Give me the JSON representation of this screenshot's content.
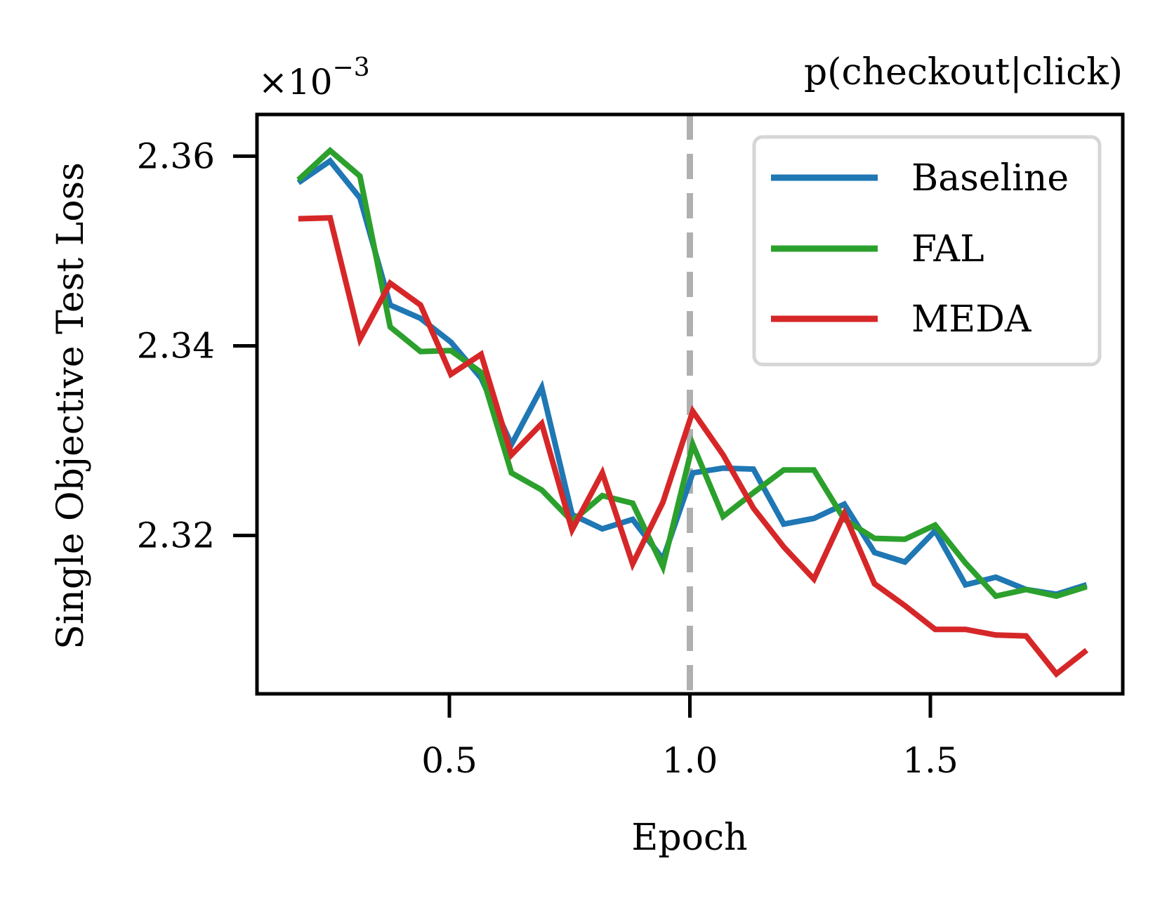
{
  "chart_data": {
    "type": "line",
    "title": "p(checkout|click)",
    "scale_label": "×10",
    "scale_exponent": "−3",
    "xlabel": "Epoch",
    "ylabel": "Single Objective Test Loss",
    "xlim": [
      0.1,
      1.9
    ],
    "ylim": [
      2.3033,
      2.3644
    ],
    "xticks": [
      0.5,
      1.0,
      1.5
    ],
    "xtick_labels": [
      "0.5",
      "1.0",
      "1.5"
    ],
    "yticks": [
      2.32,
      2.34,
      2.36
    ],
    "ytick_labels": [
      "2.32",
      "2.34",
      "2.36"
    ],
    "vline": {
      "x": 1.0,
      "color": "#b0b0b0",
      "style": "dashed"
    },
    "grid": false,
    "legend": {
      "position": "top-right",
      "entries": [
        "Baseline",
        "FAL",
        "MEDA"
      ]
    },
    "x": [
      0.186,
      0.252,
      0.314,
      0.377,
      0.44,
      0.503,
      0.566,
      0.629,
      0.692,
      0.755,
      0.818,
      0.881,
      0.944,
      1.006,
      1.069,
      1.132,
      1.195,
      1.258,
      1.321,
      1.384,
      1.447,
      1.51,
      1.573,
      1.636,
      1.699,
      1.762,
      1.825
    ],
    "series": [
      {
        "name": "Baseline",
        "color": "#1f77b4",
        "values": [
          2.3572,
          2.3595,
          2.3556,
          2.3443,
          2.3429,
          2.3404,
          2.3366,
          2.3296,
          2.3356,
          2.3222,
          2.3207,
          2.3217,
          2.3175,
          2.3266,
          2.3271,
          2.327,
          2.3212,
          2.3218,
          2.3233,
          2.3182,
          2.3172,
          2.3205,
          2.3148,
          2.3156,
          2.3143,
          2.3138,
          2.3148
        ]
      },
      {
        "name": "FAL",
        "color": "#2ca02c",
        "values": [
          2.3575,
          2.3606,
          2.3579,
          2.342,
          2.3394,
          2.3395,
          2.3372,
          2.3266,
          2.3248,
          2.3215,
          2.3242,
          2.3234,
          2.3167,
          2.3296,
          2.322,
          2.3245,
          2.3269,
          2.3269,
          2.3217,
          2.3197,
          2.3196,
          2.3211,
          2.3171,
          2.3136,
          2.3143,
          2.3136,
          2.3146
        ]
      },
      {
        "name": "MEDA",
        "color": "#d62728",
        "values": [
          2.3534,
          2.3535,
          2.3407,
          2.3466,
          2.3443,
          2.337,
          2.3391,
          2.3285,
          2.3318,
          2.3206,
          2.3266,
          2.317,
          2.3235,
          2.3331,
          2.3285,
          2.3229,
          2.3188,
          2.3154,
          2.3223,
          2.3149,
          2.3126,
          2.3101,
          2.3101,
          2.3095,
          2.3094,
          2.3054,
          2.3079
        ]
      }
    ]
  }
}
